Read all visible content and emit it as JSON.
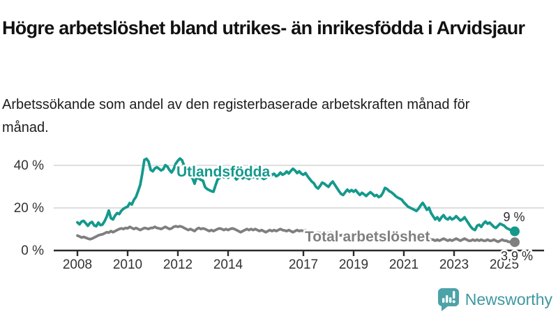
{
  "header": {
    "title": "Högre arbetslöshet bland utrikes- än inrikesfödda i Arvidsjaur",
    "subtitle": "Arbetssökande som andel av den registerbaserade arbetskraften månad för månad."
  },
  "footer": {
    "brand": "Newsworthy",
    "logo_icon": "bar-chart-speech-bubble-icon"
  },
  "colors": {
    "foreign_series": "#14998c",
    "total_series": "#7f7f7f",
    "axis": "#2b2b2b",
    "grid": "#dedede",
    "tick_text": "#333333",
    "end_label_text": "#2b2b2b",
    "logo": "#4ba3a8",
    "title_text": "#111111"
  },
  "chart_data": {
    "type": "line",
    "x_start": "2008-01",
    "x_end": "2025-06",
    "x_step_months": 1,
    "x_tick_years": [
      2008,
      2010,
      2012,
      2014,
      2017,
      2019,
      2021,
      2023,
      2025
    ],
    "x_tick_labels": [
      "2008",
      "2010",
      "2012",
      "2014",
      "2017",
      "2019",
      "2021",
      "2023",
      "2025"
    ],
    "y_ticks": [
      0,
      20,
      40
    ],
    "y_tick_labels": [
      "0 %",
      "20 %",
      "40 %"
    ],
    "ylim": [
      0,
      46
    ],
    "grid": "horizontal gridlines at 20 and 40 only",
    "legend_position": "labels inline on lines",
    "series": [
      {
        "name": "Utlandsfödda",
        "color": "#14998c",
        "end_label": "9 %",
        "end_value": 9.0,
        "values": [
          13.2,
          12.3,
          13.6,
          13.9,
          12.8,
          11.6,
          12.9,
          13.4,
          11.8,
          11.4,
          13.1,
          11.9,
          12.2,
          13.8,
          15.9,
          18.8,
          15.2,
          14.6,
          16.4,
          17.6,
          17.1,
          18.7,
          19.6,
          20.2,
          20.6,
          22.3,
          21.6,
          23.8,
          25.2,
          27.9,
          30.8,
          36.2,
          42.6,
          43.1,
          41.8,
          37.9,
          37.2,
          38.6,
          39.1,
          38.4,
          37.6,
          38.2,
          40.1,
          39.4,
          37.8,
          36.7,
          38.3,
          40.8,
          42.2,
          43.2,
          42.4,
          39.8,
          37.9,
          36.4,
          34.8,
          33.9,
          31.4,
          34.6,
          33.8,
          33.2,
          32.8,
          29.8,
          28.9,
          28.4,
          27.9,
          27.6,
          30.6,
          33.4,
          34.1,
          35.2,
          34.4,
          35.3,
          34.2,
          35.6,
          36.1,
          34.6,
          33.4,
          34.3,
          35.4,
          33.9,
          34.8,
          34.2,
          33.6,
          34.6,
          34.4,
          35.1,
          33.9,
          35.4,
          34.3,
          33.6,
          34.1,
          35.2,
          34.6,
          35.6,
          36.1,
          34.9,
          35.4,
          36.6,
          35.6,
          36.1,
          37.1,
          36.2,
          37.4,
          38.4,
          37.6,
          36.4,
          37.2,
          36.1,
          35.6,
          36.4,
          34.9,
          33.6,
          32.4,
          31.6,
          29.9,
          29.1,
          30.4,
          31.9,
          31.4,
          30.6,
          29.9,
          31.4,
          32.4,
          30.9,
          29.4,
          27.9,
          26.6,
          26.1,
          27.4,
          28.6,
          27.6,
          28.4,
          27.6,
          28.4,
          27.1,
          26.1,
          27.1,
          26.4,
          25.6,
          26.6,
          27.4,
          26.6,
          25.6,
          26.1,
          25.1,
          25.6,
          27.1,
          29.4,
          28.9,
          27.9,
          27.4,
          26.6,
          25.6,
          24.9,
          24.4,
          23.9,
          22.6,
          21.6,
          20.6,
          20.1,
          19.6,
          19.1,
          18.6,
          19.6,
          21.1,
          22.4,
          20.9,
          19.1,
          20.1,
          17.6,
          16.1,
          14.6,
          15.6,
          14.1,
          15.6,
          16.6,
          15.1,
          14.6,
          15.6,
          14.6,
          15.1,
          16.1,
          15.1,
          14.1,
          14.6,
          15.6,
          14.1,
          12.6,
          11.1,
          10.1,
          9.6,
          11.6,
          12.1,
          11.1,
          12.6,
          13.6,
          12.6,
          13.1,
          12.1,
          11.1,
          10.6,
          11.6,
          12.6,
          12.1,
          11.6,
          10.6,
          10.1,
          9.6,
          9.2,
          9.0
        ]
      },
      {
        "name": "Total arbetslöshet",
        "color": "#7f7f7f",
        "end_label": "3,9 %",
        "end_value": 3.9,
        "values": [
          7.0,
          6.6,
          6.1,
          6.4,
          6.0,
          5.6,
          5.3,
          5.6,
          6.1,
          6.6,
          7.1,
          7.4,
          7.6,
          8.1,
          8.6,
          8.4,
          9.1,
          8.6,
          9.1,
          9.6,
          10.1,
          10.4,
          10.1,
          10.6,
          10.4,
          11.1,
          10.6,
          10.1,
          10.6,
          10.1,
          9.6,
          10.1,
          10.6,
          10.4,
          10.1,
          10.6,
          10.6,
          11.1,
          10.6,
          10.4,
          10.1,
          10.6,
          11.1,
          10.6,
          10.1,
          10.4,
          11.1,
          11.4,
          11.1,
          11.4,
          11.1,
          10.6,
          10.1,
          9.6,
          10.1,
          9.6,
          9.1,
          10.1,
          10.6,
          10.1,
          10.4,
          10.1,
          9.6,
          9.1,
          9.6,
          9.1,
          9.6,
          10.1,
          10.4,
          10.1,
          9.6,
          10.1,
          9.6,
          10.1,
          10.4,
          10.1,
          9.6,
          9.1,
          8.6,
          9.1,
          9.6,
          10.1,
          9.6,
          10.1,
          9.6,
          10.1,
          9.6,
          9.1,
          9.6,
          9.1,
          8.6,
          9.1,
          9.6,
          9.1,
          9.6,
          9.1,
          9.6,
          10.1,
          9.6,
          9.4,
          9.1,
          9.6,
          9.1,
          8.6,
          9.1,
          9.6,
          9.1,
          9.4,
          9.1,
          9.4,
          9.1,
          8.6,
          8.6,
          8.1,
          8.1,
          8.4,
          8.1,
          8.4,
          8.1,
          8.1,
          8.1,
          8.4,
          8.1,
          7.6,
          7.6,
          7.1,
          7.1,
          7.4,
          7.1,
          7.4,
          7.1,
          7.1,
          7.1,
          7.4,
          7.1,
          6.6,
          7.1,
          6.6,
          6.6,
          7.1,
          6.6,
          6.6,
          6.1,
          6.6,
          6.6,
          6.6,
          7.1,
          7.6,
          7.4,
          7.1,
          7.1,
          6.6,
          6.6,
          6.1,
          6.1,
          6.1,
          6.1,
          6.1,
          5.6,
          5.6,
          5.6,
          5.1,
          5.6,
          5.6,
          5.1,
          5.6,
          5.6,
          5.1,
          5.6,
          5.1,
          5.1,
          4.6,
          5.1,
          4.6,
          5.1,
          5.6,
          5.1,
          4.6,
          5.1,
          4.6,
          5.1,
          5.6,
          5.1,
          4.6,
          5.1,
          5.6,
          5.1,
          4.6,
          4.6,
          5.1,
          4.6,
          5.1,
          4.6,
          5.1,
          4.6,
          4.6,
          5.1,
          4.6,
          4.6,
          5.1,
          4.6,
          4.1,
          4.6,
          5.1,
          4.6,
          4.6,
          4.1,
          4.0,
          3.9,
          3.9
        ]
      }
    ]
  }
}
